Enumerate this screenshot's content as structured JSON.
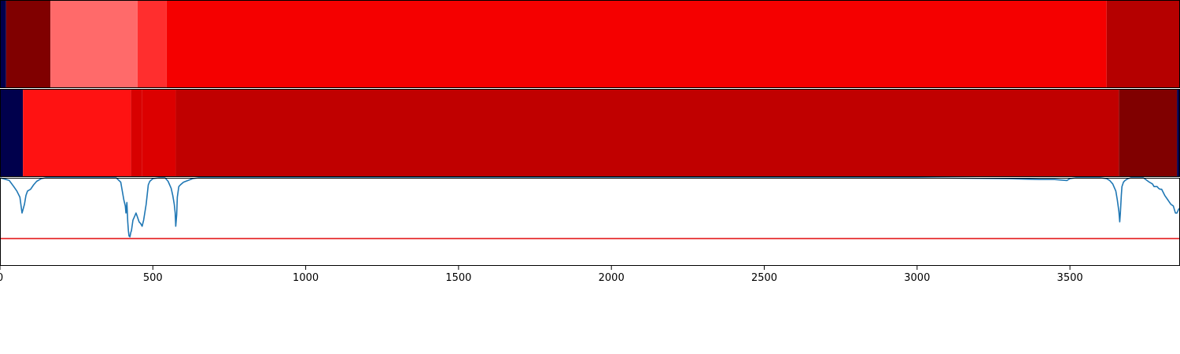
{
  "colors": {
    "navy": "#00004c",
    "dark_red": "#800000",
    "light_red": "#ff6a6a",
    "mid_red": "#ff2e2e",
    "bright_red": "#f50000",
    "crimson": "#b50000",
    "red2": "#ff1212",
    "red3": "#dc0000",
    "deep_red": "#c00000",
    "line": "#1f77b4",
    "threshold": "#e41a1c"
  },
  "chart_data": [
    {
      "type": "heatmap",
      "title": "",
      "segments": [
        {
          "start": 0,
          "end": 20,
          "color": "#00004c"
        },
        {
          "start": 20,
          "end": 165,
          "color": "#800000"
        },
        {
          "start": 165,
          "end": 450,
          "color": "#ff6a6a"
        },
        {
          "start": 450,
          "end": 545,
          "color": "#ff2e2e"
        },
        {
          "start": 545,
          "end": 3620,
          "color": "#f50000"
        },
        {
          "start": 3620,
          "end": 3860,
          "color": "#b50000"
        }
      ]
    },
    {
      "type": "heatmap",
      "title": "",
      "segments": [
        {
          "start": 0,
          "end": 75,
          "color": "#00004c"
        },
        {
          "start": 75,
          "end": 428,
          "color": "#ff1212"
        },
        {
          "start": 428,
          "end": 465,
          "color": "#d80000"
        },
        {
          "start": 465,
          "end": 575,
          "color": "#dc0000"
        },
        {
          "start": 575,
          "end": 3660,
          "color": "#c00000"
        },
        {
          "start": 3660,
          "end": 3850,
          "color": "#800000"
        },
        {
          "start": 3850,
          "end": 3860,
          "color": "#00004c"
        }
      ]
    },
    {
      "type": "line",
      "title": "",
      "xlabel": "",
      "ylabel": "",
      "xlim": [
        0,
        3860
      ],
      "ylim": [
        0,
        1
      ],
      "xticks": [
        0,
        500,
        1000,
        1500,
        2000,
        2500,
        3000,
        3500
      ],
      "grid": false,
      "threshold": 0.31,
      "series": [
        {
          "x": [
            0,
            20,
            30,
            45,
            55,
            65,
            72,
            80,
            85,
            90,
            100,
            110,
            120,
            135,
            150,
            170,
            200,
            250,
            300,
            350,
            380,
            395,
            405,
            410,
            412,
            415,
            418,
            420,
            422,
            425,
            428,
            430,
            435,
            440,
            445,
            450,
            455,
            460,
            465,
            470,
            478,
            485,
            490,
            500,
            520,
            540,
            550,
            560,
            565,
            570,
            573,
            575,
            578,
            580,
            585,
            590,
            600,
            615,
            630,
            650,
            700,
            800,
            1000,
            1500,
            2000,
            2500,
            3000,
            3300,
            3400,
            3450,
            3490,
            3500,
            3520,
            3550,
            3580,
            3600,
            3620,
            3630,
            3640,
            3650,
            3655,
            3660,
            3663,
            3665,
            3668,
            3670,
            3675,
            3680,
            3690,
            3700,
            3720,
            3740,
            3760,
            3770,
            3775,
            3785,
            3790,
            3795,
            3800,
            3810,
            3820,
            3830,
            3838,
            3845,
            3850,
            3855,
            3860
          ],
          "y": [
            1.0,
            0.98,
            0.97,
            0.9,
            0.85,
            0.78,
            0.6,
            0.7,
            0.8,
            0.85,
            0.87,
            0.92,
            0.96,
            0.99,
            1.0,
            1.0,
            1.0,
            1.0,
            1.0,
            1.0,
            1.0,
            0.95,
            0.75,
            0.68,
            0.6,
            0.72,
            0.5,
            0.4,
            0.34,
            0.33,
            0.38,
            0.4,
            0.52,
            0.56,
            0.6,
            0.55,
            0.5,
            0.48,
            0.45,
            0.52,
            0.7,
            0.92,
            0.96,
            0.99,
            1.0,
            1.0,
            0.96,
            0.88,
            0.8,
            0.7,
            0.6,
            0.45,
            0.58,
            0.78,
            0.9,
            0.92,
            0.95,
            0.97,
            0.99,
            1.0,
            1.0,
            1.0,
            1.0,
            1.0,
            1.0,
            1.0,
            1.0,
            0.99,
            0.98,
            0.98,
            0.97,
            0.99,
            1.0,
            1.0,
            1.0,
            1.0,
            0.99,
            0.97,
            0.93,
            0.85,
            0.75,
            0.62,
            0.5,
            0.6,
            0.8,
            0.9,
            0.95,
            0.97,
            0.99,
            1.0,
            1.0,
            1.0,
            0.95,
            0.93,
            0.9,
            0.9,
            0.88,
            0.87,
            0.87,
            0.8,
            0.75,
            0.7,
            0.68,
            0.6,
            0.6,
            0.64,
            0.66
          ]
        }
      ]
    }
  ]
}
